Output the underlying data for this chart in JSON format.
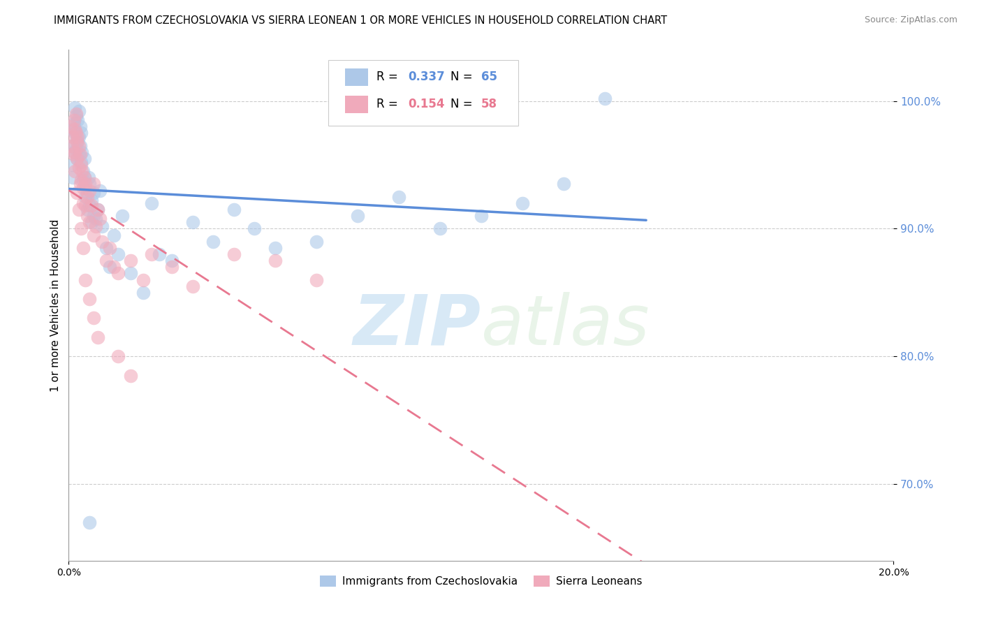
{
  "title": "IMMIGRANTS FROM CZECHOSLOVAKIA VS SIERRA LEONEAN 1 OR MORE VEHICLES IN HOUSEHOLD CORRELATION CHART",
  "source": "Source: ZipAtlas.com",
  "ylabel": "1 or more Vehicles in Household",
  "r_blue": 0.337,
  "n_blue": 65,
  "r_pink": 0.154,
  "n_pink": 58,
  "legend_label_blue": "Immigrants from Czechoslovakia",
  "legend_label_pink": "Sierra Leoneans",
  "blue_color": "#adc8e8",
  "pink_color": "#f0aabb",
  "blue_line_color": "#5b8dd9",
  "pink_line_color": "#e87890",
  "xlim": [
    0.0,
    20.0
  ],
  "ylim": [
    64.0,
    104.0
  ],
  "yticks": [
    70.0,
    80.0,
    90.0,
    100.0
  ],
  "ytick_labels": [
    "70.0%",
    "80.0%",
    "90.0%",
    "100.0%"
  ],
  "watermark_zip": "ZIP",
  "watermark_atlas": "atlas",
  "title_fontsize": 10.5,
  "source_fontsize": 9
}
